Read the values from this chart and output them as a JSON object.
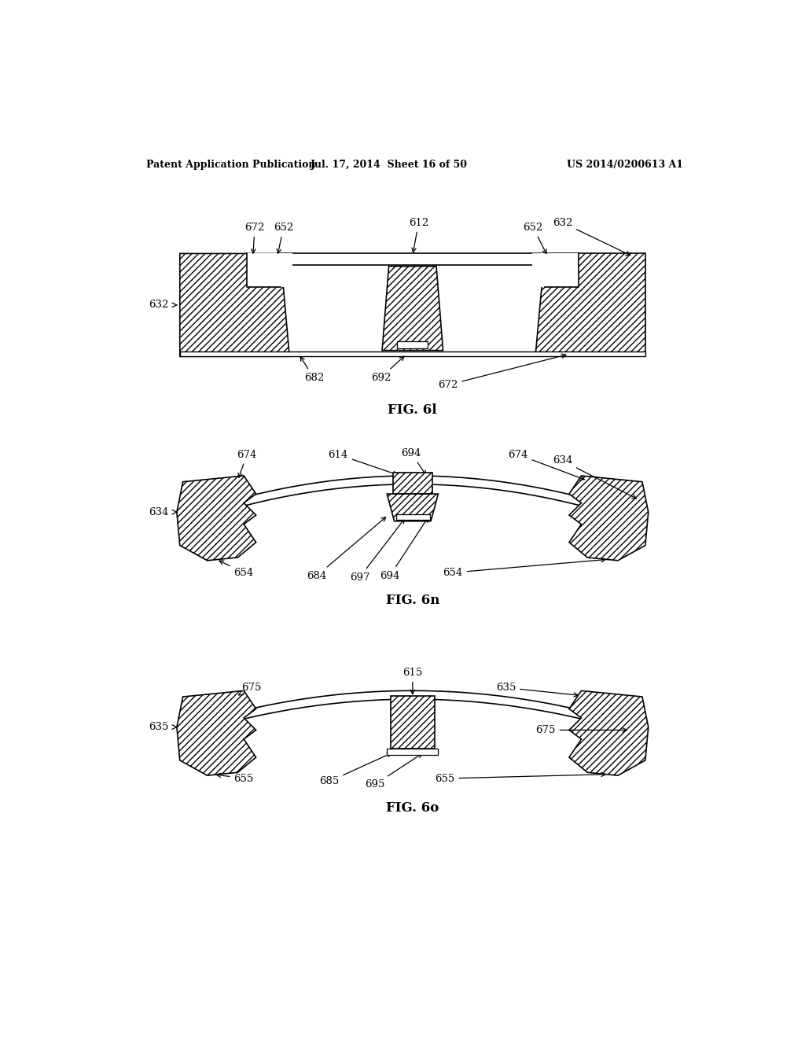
{
  "header_left": "Patent Application Publication",
  "header_mid": "Jul. 17, 2014  Sheet 16 of 50",
  "header_right": "US 2014/0200613 A1",
  "fig_l_label": "FIG. 6l",
  "fig_n_label": "FIG. 6n",
  "fig_o_label": "FIG. 6o",
  "bg_color": "#ffffff"
}
